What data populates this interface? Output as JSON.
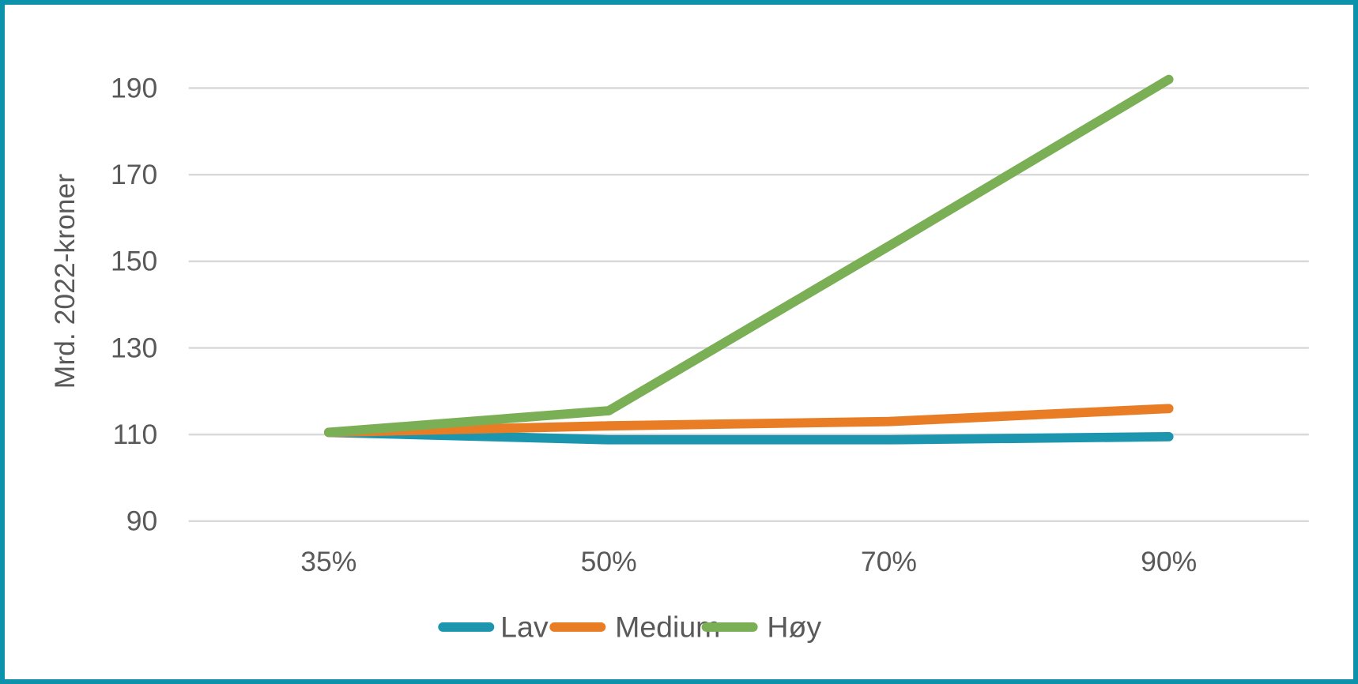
{
  "figure": {
    "border_color": "#0c93ab",
    "background_color": "#ffffff",
    "text_color": "#595959",
    "gridline_color": "#d9d9d9"
  },
  "chart_data": {
    "type": "line",
    "title": "",
    "xlabel": "",
    "ylabel": "Mrd. 2022-kroner",
    "categories": [
      "35%",
      "50%",
      "70%",
      "90%"
    ],
    "series": [
      {
        "name": "Lav",
        "color": "#1b96ae",
        "values": [
          110.5,
          108.8,
          108.8,
          109.5
        ]
      },
      {
        "name": "Medium",
        "color": "#e87d26",
        "values": [
          110.5,
          112.0,
          113.0,
          116.0
        ]
      },
      {
        "name": "Høy",
        "color": "#7aaf55",
        "values": [
          110.5,
          115.5,
          153.5,
          192.0
        ]
      }
    ],
    "yticks": [
      90,
      110,
      130,
      150,
      170,
      190
    ],
    "ylim": [
      90,
      198
    ],
    "grid": "horizontal-only",
    "legend_position": "bottom",
    "legend_entries": [
      "Lav",
      "Medium",
      "Høy"
    ]
  }
}
